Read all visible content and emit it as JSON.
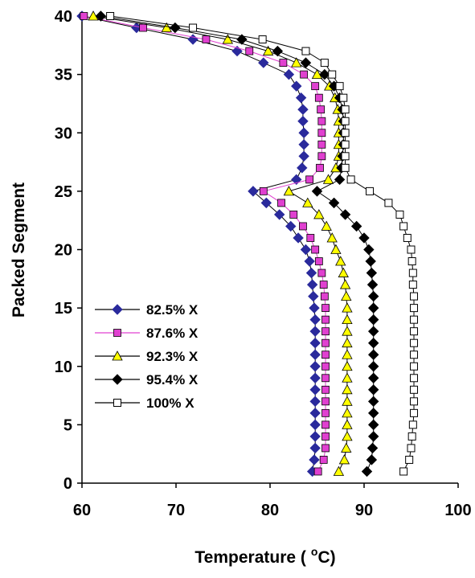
{
  "chart_data": {
    "type": "line",
    "title": "",
    "xlabel": "Temperature ( oC)",
    "xlabel_main": "Temperature (",
    "xlabel_sup": "o",
    "xlabel_end": "C)",
    "ylabel": "Packed Segment",
    "xlim": [
      60,
      100
    ],
    "ylim": [
      0,
      40
    ],
    "xticks": [
      "60",
      "70",
      "80",
      "90",
      "100"
    ],
    "yticks": [
      "0",
      "5",
      "10",
      "15",
      "20",
      "25",
      "30",
      "35",
      "40"
    ],
    "grid": false,
    "legend_position": "left-bottom",
    "series": [
      {
        "name": "82.5% X",
        "marker": "diamond-filled",
        "color": "#2a2a9c",
        "points": [
          [
            60.0,
            40
          ],
          [
            65.8,
            39
          ],
          [
            71.8,
            38
          ],
          [
            76.5,
            37
          ],
          [
            79.3,
            36
          ],
          [
            82.0,
            35
          ],
          [
            82.8,
            34
          ],
          [
            83.3,
            33
          ],
          [
            83.5,
            32
          ],
          [
            83.5,
            31
          ],
          [
            83.6,
            30
          ],
          [
            83.6,
            29
          ],
          [
            83.6,
            28
          ],
          [
            83.4,
            27
          ],
          [
            82.8,
            26
          ],
          [
            78.2,
            25
          ],
          [
            79.6,
            24
          ],
          [
            81.0,
            23
          ],
          [
            82.2,
            22
          ],
          [
            83.0,
            21
          ],
          [
            83.8,
            20
          ],
          [
            84.2,
            19
          ],
          [
            84.4,
            18
          ],
          [
            84.5,
            17
          ],
          [
            84.6,
            16
          ],
          [
            84.7,
            15
          ],
          [
            84.8,
            14
          ],
          [
            84.8,
            13
          ],
          [
            84.8,
            12
          ],
          [
            84.8,
            11
          ],
          [
            84.8,
            10
          ],
          [
            84.8,
            9
          ],
          [
            84.8,
            8
          ],
          [
            84.8,
            7
          ],
          [
            84.8,
            6
          ],
          [
            84.8,
            5
          ],
          [
            84.8,
            4
          ],
          [
            84.8,
            3
          ],
          [
            84.7,
            2
          ],
          [
            84.5,
            1
          ]
        ]
      },
      {
        "name": "87.6% X",
        "marker": "square-filled",
        "color": "#e040d0",
        "line_color": "#e040d0",
        "points": [
          [
            60.2,
            40
          ],
          [
            66.5,
            39
          ],
          [
            73.2,
            38
          ],
          [
            77.8,
            37
          ],
          [
            81.4,
            36
          ],
          [
            83.6,
            35
          ],
          [
            84.8,
            34
          ],
          [
            85.2,
            33
          ],
          [
            85.4,
            32
          ],
          [
            85.5,
            31
          ],
          [
            85.5,
            30
          ],
          [
            85.5,
            29
          ],
          [
            85.5,
            28
          ],
          [
            85.3,
            27
          ],
          [
            84.2,
            26
          ],
          [
            79.3,
            25
          ],
          [
            81.2,
            24
          ],
          [
            82.5,
            23
          ],
          [
            83.5,
            22
          ],
          [
            84.3,
            21
          ],
          [
            84.8,
            20
          ],
          [
            85.2,
            19
          ],
          [
            85.5,
            18
          ],
          [
            85.7,
            17
          ],
          [
            85.8,
            16
          ],
          [
            85.9,
            15
          ],
          [
            85.9,
            14
          ],
          [
            85.9,
            13
          ],
          [
            85.9,
            12
          ],
          [
            85.9,
            11
          ],
          [
            85.9,
            10
          ],
          [
            85.9,
            9
          ],
          [
            85.9,
            8
          ],
          [
            85.9,
            7
          ],
          [
            85.9,
            6
          ],
          [
            85.9,
            5
          ],
          [
            85.9,
            4
          ],
          [
            85.9,
            3
          ],
          [
            85.7,
            2
          ],
          [
            85.1,
            1
          ]
        ]
      },
      {
        "name": "92.3% X",
        "marker": "triangle-filled",
        "color": "#ffff00",
        "points": [
          [
            61.2,
            40
          ],
          [
            69.0,
            39
          ],
          [
            75.5,
            38
          ],
          [
            79.8,
            37
          ],
          [
            82.8,
            36
          ],
          [
            85.0,
            35
          ],
          [
            86.3,
            34
          ],
          [
            86.9,
            33
          ],
          [
            87.2,
            32
          ],
          [
            87.3,
            31
          ],
          [
            87.3,
            30
          ],
          [
            87.3,
            29
          ],
          [
            87.3,
            28
          ],
          [
            87.0,
            27
          ],
          [
            86.2,
            26
          ],
          [
            82.0,
            25
          ],
          [
            84.0,
            24
          ],
          [
            85.2,
            23
          ],
          [
            86.0,
            22
          ],
          [
            86.6,
            21
          ],
          [
            87.0,
            20
          ],
          [
            87.5,
            19
          ],
          [
            87.8,
            18
          ],
          [
            88.0,
            17
          ],
          [
            88.1,
            16
          ],
          [
            88.2,
            15
          ],
          [
            88.2,
            14
          ],
          [
            88.2,
            13
          ],
          [
            88.2,
            12
          ],
          [
            88.2,
            11
          ],
          [
            88.2,
            10
          ],
          [
            88.2,
            9
          ],
          [
            88.2,
            8
          ],
          [
            88.2,
            7
          ],
          [
            88.2,
            6
          ],
          [
            88.2,
            5
          ],
          [
            88.2,
            4
          ],
          [
            88.1,
            3
          ],
          [
            87.9,
            2
          ],
          [
            87.3,
            1
          ]
        ]
      },
      {
        "name": "95.4% X",
        "marker": "diamond-filled",
        "color": "#000000",
        "points": [
          [
            62.0,
            40
          ],
          [
            69.9,
            39
          ],
          [
            77.0,
            38
          ],
          [
            80.8,
            37
          ],
          [
            83.8,
            36
          ],
          [
            85.8,
            35
          ],
          [
            86.8,
            34
          ],
          [
            87.4,
            33
          ],
          [
            87.7,
            32
          ],
          [
            87.8,
            31
          ],
          [
            87.8,
            30
          ],
          [
            87.8,
            29
          ],
          [
            87.7,
            28
          ],
          [
            87.6,
            27
          ],
          [
            87.4,
            26
          ],
          [
            85.0,
            25
          ],
          [
            86.8,
            24
          ],
          [
            88.0,
            23
          ],
          [
            89.2,
            22
          ],
          [
            90.0,
            21
          ],
          [
            90.5,
            20
          ],
          [
            90.7,
            19
          ],
          [
            90.8,
            18
          ],
          [
            90.9,
            17
          ],
          [
            91.0,
            16
          ],
          [
            91.0,
            15
          ],
          [
            91.0,
            14
          ],
          [
            91.0,
            13
          ],
          [
            91.0,
            12
          ],
          [
            91.0,
            11
          ],
          [
            91.0,
            10
          ],
          [
            91.0,
            9
          ],
          [
            91.0,
            8
          ],
          [
            91.0,
            7
          ],
          [
            91.0,
            6
          ],
          [
            91.0,
            5
          ],
          [
            91.0,
            4
          ],
          [
            90.9,
            3
          ],
          [
            90.8,
            2
          ],
          [
            90.3,
            1
          ]
        ]
      },
      {
        "name": "100% X",
        "marker": "square-open",
        "color": "#000000",
        "points": [
          [
            63.0,
            40
          ],
          [
            71.8,
            39
          ],
          [
            79.2,
            38
          ],
          [
            83.8,
            37
          ],
          [
            85.8,
            36
          ],
          [
            86.6,
            35
          ],
          [
            87.4,
            34
          ],
          [
            87.8,
            33
          ],
          [
            88.0,
            32
          ],
          [
            88.0,
            31
          ],
          [
            88.0,
            30
          ],
          [
            88.0,
            29
          ],
          [
            88.0,
            28
          ],
          [
            88.0,
            27
          ],
          [
            88.6,
            26
          ],
          [
            90.6,
            25
          ],
          [
            92.6,
            24
          ],
          [
            93.8,
            23
          ],
          [
            94.2,
            22
          ],
          [
            94.6,
            21
          ],
          [
            95.0,
            20
          ],
          [
            95.1,
            19
          ],
          [
            95.2,
            18
          ],
          [
            95.2,
            17
          ],
          [
            95.3,
            16
          ],
          [
            95.3,
            15
          ],
          [
            95.3,
            14
          ],
          [
            95.3,
            13
          ],
          [
            95.3,
            12
          ],
          [
            95.3,
            11
          ],
          [
            95.3,
            10
          ],
          [
            95.3,
            9
          ],
          [
            95.3,
            8
          ],
          [
            95.3,
            7
          ],
          [
            95.3,
            6
          ],
          [
            95.2,
            5
          ],
          [
            95.1,
            4
          ],
          [
            95.0,
            3
          ],
          [
            94.8,
            2
          ],
          [
            94.2,
            1
          ]
        ]
      }
    ]
  }
}
